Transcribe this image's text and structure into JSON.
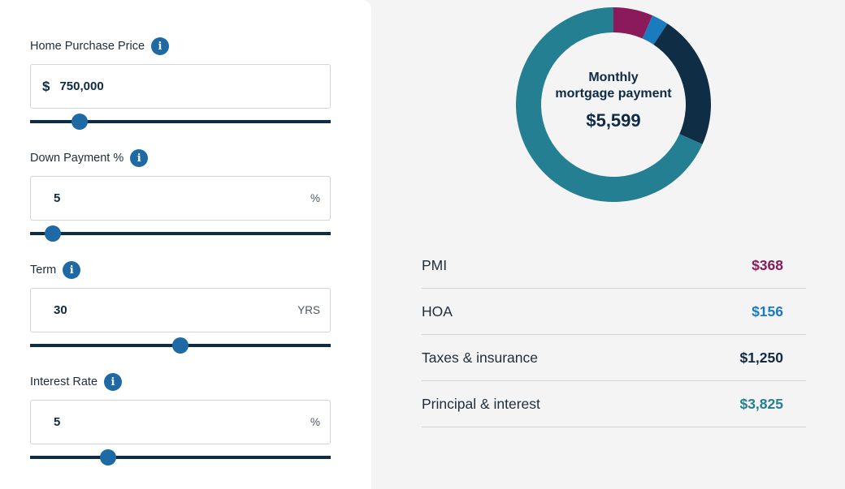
{
  "inputs": {
    "price": {
      "label": "Home Purchase Price",
      "prefix": "$",
      "value": "750,000",
      "slider_fraction": 0.165
    },
    "down": {
      "label": "Down Payment %",
      "value": "5",
      "suffix": "%",
      "slider_fraction": 0.075
    },
    "term": {
      "label": "Term",
      "value": "30",
      "suffix": "YRS",
      "slider_fraction": 0.5
    },
    "rate": {
      "label": "Interest Rate",
      "value": "5",
      "suffix": "%",
      "slider_fraction": 0.26
    }
  },
  "info_icon": {
    "glyph": "i"
  },
  "summary": {
    "title_line1": "Monthly",
    "title_line2": "mortgage payment",
    "total": "$5,599"
  },
  "breakdown": [
    {
      "label": "PMI",
      "value": "$368",
      "color": "#8b1a5a"
    },
    {
      "label": "HOA",
      "value": "$156",
      "color": "#1a7bbf"
    },
    {
      "label": "Taxes & insurance",
      "value": "$1,250",
      "color": "#0f2a44"
    },
    {
      "label": "Principal & interest",
      "value": "$3,825",
      "color": "#237f91"
    }
  ],
  "chart_data": {
    "type": "pie",
    "donut": true,
    "categories": [
      "PMI",
      "HOA",
      "Taxes & insurance",
      "Principal & interest"
    ],
    "values": [
      368,
      156,
      1250,
      3825
    ],
    "colors": [
      "#8b1a5a",
      "#1a7bbf",
      "#0f2e46",
      "#237f91"
    ]
  }
}
